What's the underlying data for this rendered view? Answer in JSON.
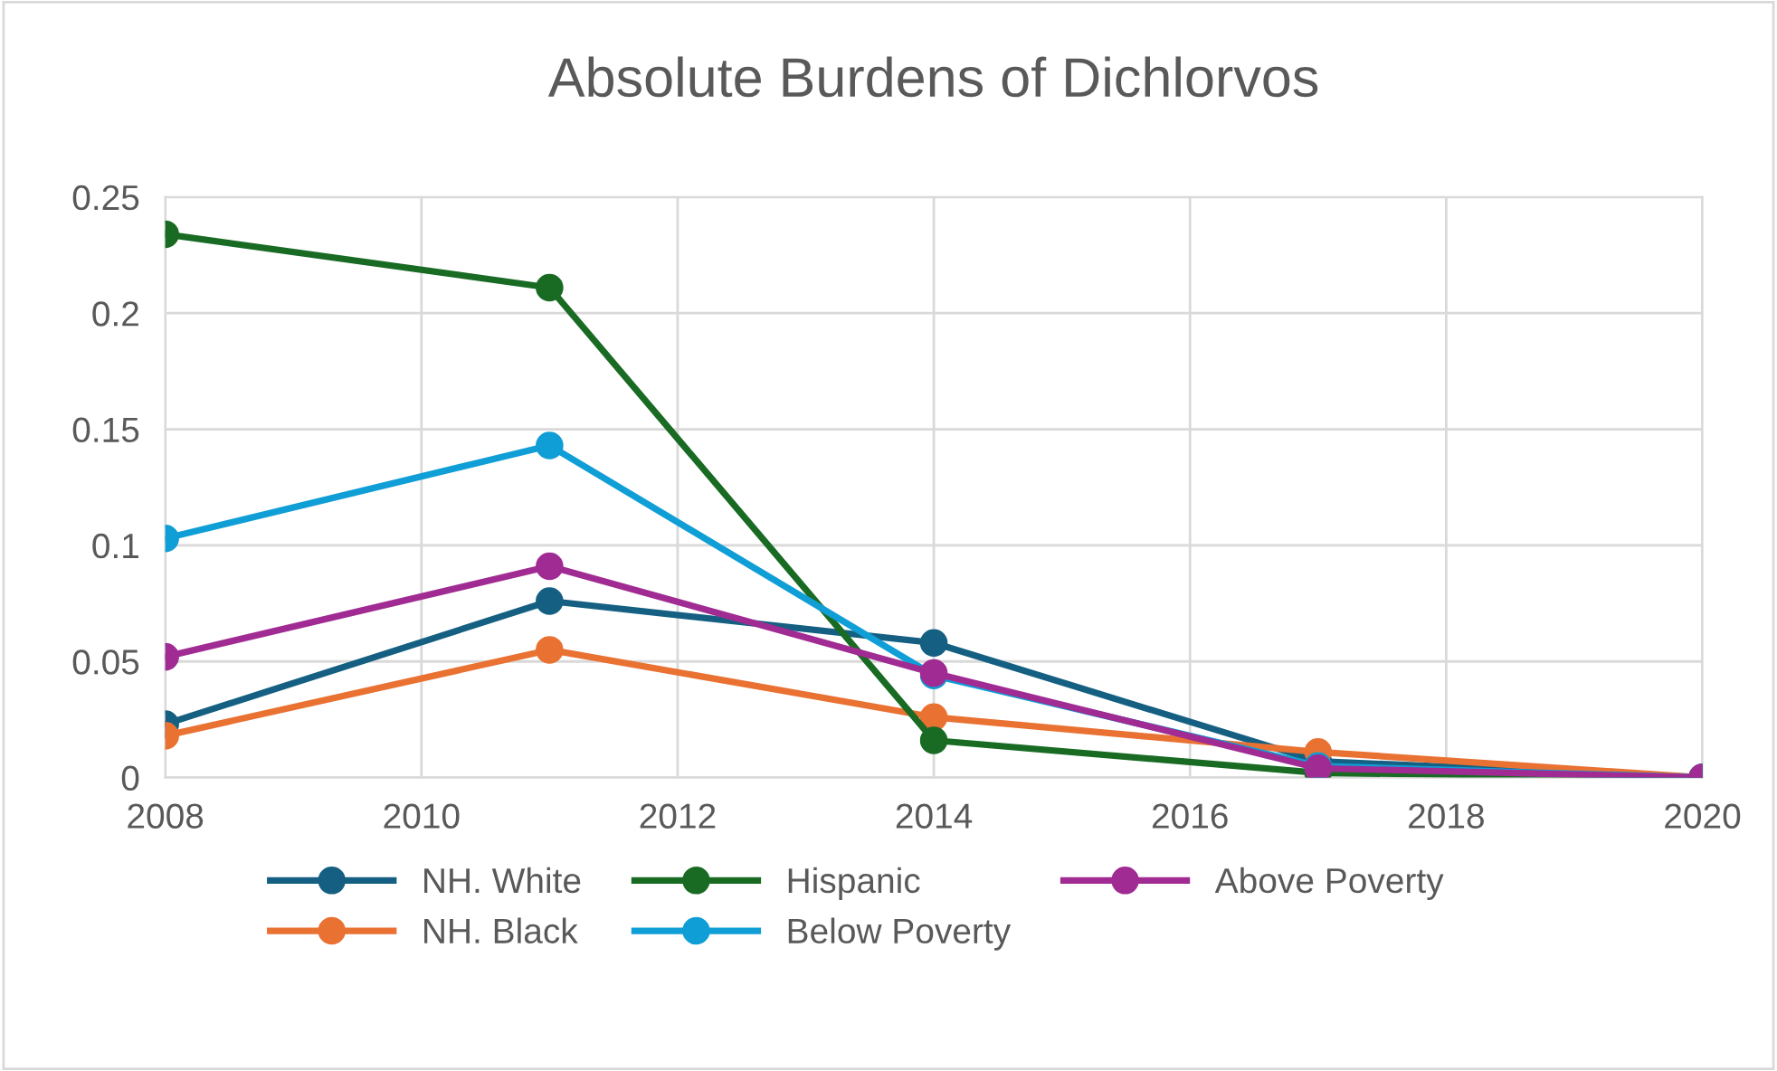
{
  "chart_data": {
    "type": "line",
    "title": "Absolute Burdens of Dichlorvos",
    "x": [
      2008,
      2011,
      2014,
      2017,
      2020
    ],
    "series": [
      {
        "name": "NH. White",
        "color": "#156082",
        "values": [
          0.023,
          0.076,
          0.058,
          0.007,
          0.0
        ]
      },
      {
        "name": "NH. Black",
        "color": "#e97132",
        "values": [
          0.018,
          0.055,
          0.026,
          0.011,
          0.0
        ]
      },
      {
        "name": "Hispanic",
        "color": "#196b24",
        "values": [
          0.234,
          0.211,
          0.016,
          0.002,
          0.0
        ]
      },
      {
        "name": "Below Poverty",
        "color": "#0f9ed5",
        "values": [
          0.103,
          0.143,
          0.044,
          0.005,
          0.0
        ]
      },
      {
        "name": "Above Poverty",
        "color": "#a02b93",
        "values": [
          0.052,
          0.091,
          0.045,
          0.004,
          0.0
        ]
      }
    ],
    "xlim": [
      2008,
      2020
    ],
    "xticks": [
      2008,
      2010,
      2012,
      2014,
      2016,
      2018,
      2020
    ],
    "ylim": [
      0,
      0.25
    ],
    "yticks": [
      0,
      0.05,
      0.1,
      0.15,
      0.2,
      0.25
    ],
    "grid": true,
    "legend": "bottom",
    "marker": "circle",
    "line_style": "solid"
  }
}
